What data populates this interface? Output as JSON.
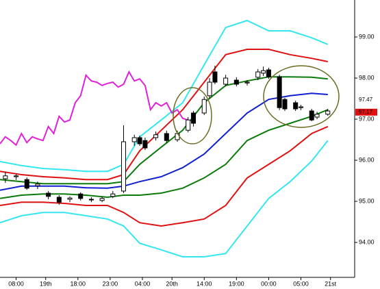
{
  "chart_data": {
    "type": "candlestick",
    "xlim": [
      0,
      66
    ],
    "ylim": [
      93.15,
      99.9
    ],
    "grid": false,
    "yticks": [
      {
        "value": 94,
        "label": "94.00"
      },
      {
        "value": 95,
        "label": "95.00"
      },
      {
        "value": 96,
        "label": "96.00"
      },
      {
        "value": 97,
        "label": "97.00"
      },
      {
        "value": 98,
        "label": "98.00"
      },
      {
        "value": 99,
        "label": "99.00"
      }
    ],
    "xticks": [
      {
        "value": 3,
        "label": "08:00"
      },
      {
        "value": 8.5,
        "label": "19th"
      },
      {
        "value": 14.5,
        "label": "18:00"
      },
      {
        "value": 20.5,
        "label": "23:00"
      },
      {
        "value": 26.5,
        "label": "04:00"
      },
      {
        "value": 32,
        "label": "20th"
      },
      {
        "value": 38,
        "label": "14:00"
      },
      {
        "value": 44,
        "label": "19:00"
      },
      {
        "value": 50,
        "label": "00:00"
      },
      {
        "value": 56,
        "label": "05:00"
      },
      {
        "value": 61.5,
        "label": "21st"
      }
    ],
    "up_color": "#ffffff",
    "down_color": "#000000",
    "candles": {
      "x": [
        1,
        3,
        5,
        7,
        9,
        11,
        13,
        15,
        17,
        19,
        21,
        23,
        25,
        26,
        27,
        29,
        31,
        33,
        35,
        36,
        38,
        39,
        40,
        42,
        44,
        46,
        48,
        49,
        50,
        52,
        53,
        55,
        56,
        58,
        59,
        61
      ],
      "open": [
        95.55,
        95.6,
        95.53,
        95.38,
        95.2,
        95.1,
        95.05,
        95.18,
        95.05,
        95.02,
        95.12,
        95.25,
        96.45,
        96.55,
        96.48,
        96.55,
        96.65,
        96.5,
        96.73,
        97.15,
        97.15,
        97.57,
        98.15,
        97.85,
        97.95,
        97.88,
        98.02,
        98.12,
        98.2,
        98.03,
        97.48,
        97.4,
        97.28,
        97.2,
        97.05,
        97.12
      ],
      "high": [
        95.72,
        95.68,
        95.58,
        95.48,
        95.25,
        95.15,
        95.12,
        95.22,
        95.1,
        95.12,
        95.25,
        96.85,
        96.62,
        96.6,
        96.55,
        96.7,
        96.72,
        96.72,
        97.05,
        97.2,
        97.55,
        98.0,
        98.3,
        98.08,
        98.02,
        97.95,
        98.22,
        98.28,
        98.25,
        98.08,
        97.52,
        97.45,
        97.35,
        97.25,
        97.18,
        97.25
      ],
      "low": [
        95.45,
        95.52,
        95.28,
        95.3,
        95.05,
        94.92,
        94.98,
        95.02,
        94.98,
        94.98,
        95.08,
        95.2,
        96.35,
        96.35,
        96.25,
        96.48,
        96.42,
        96.45,
        96.68,
        96.82,
        97.1,
        97.5,
        97.85,
        97.8,
        97.8,
        97.82,
        97.95,
        98.05,
        97.98,
        97.22,
        97.2,
        97.2,
        97.22,
        96.95,
        97.0,
        97.08
      ],
      "close": [
        95.62,
        95.62,
        95.32,
        95.42,
        95.12,
        94.98,
        95.08,
        95.07,
        95.05,
        95.07,
        95.18,
        96.45,
        96.55,
        96.4,
        96.3,
        96.62,
        96.48,
        96.65,
        96.98,
        96.9,
        97.48,
        97.9,
        97.9,
        98.0,
        97.85,
        97.9,
        98.15,
        98.18,
        98.03,
        97.28,
        97.25,
        97.25,
        97.3,
        96.98,
        97.12,
        97.2
      ]
    },
    "series": [
      {
        "color": "#33e6f0",
        "x": [
          0,
          4,
          8,
          12,
          16,
          20,
          23,
          26,
          30,
          34,
          38,
          42,
          46,
          50,
          54,
          58,
          61
        ],
        "values": [
          95.97,
          95.87,
          95.8,
          95.77,
          95.73,
          95.73,
          95.9,
          96.57,
          96.98,
          97.4,
          98.32,
          99.23,
          99.4,
          99.15,
          99.15,
          98.98,
          98.82
        ]
      },
      {
        "color": "#e01010",
        "x": [
          0,
          4,
          8,
          12,
          16,
          20,
          23,
          26,
          30,
          34,
          38,
          42,
          46,
          50,
          54,
          58,
          61
        ],
        "values": [
          95.73,
          95.65,
          95.6,
          95.57,
          95.53,
          95.53,
          95.65,
          96.23,
          96.73,
          97.23,
          97.9,
          98.57,
          98.7,
          98.7,
          98.57,
          98.48,
          98.4
        ]
      },
      {
        "color": "#0a7a0a",
        "x": [
          0,
          4,
          8,
          12,
          16,
          20,
          23,
          26,
          30,
          34,
          38,
          42,
          46,
          50,
          54,
          58,
          61
        ],
        "values": [
          95.53,
          95.48,
          95.43,
          95.43,
          95.43,
          95.43,
          95.48,
          95.9,
          96.32,
          96.73,
          97.4,
          97.82,
          97.93,
          98.03,
          98.03,
          98.02,
          97.98
        ]
      },
      {
        "color": "#1020d0",
        "x": [
          0,
          4,
          8,
          12,
          16,
          20,
          23,
          26,
          30,
          34,
          38,
          42,
          46,
          50,
          54,
          58,
          61
        ],
        "values": [
          95.27,
          95.37,
          95.37,
          95.37,
          95.33,
          95.32,
          95.37,
          95.48,
          95.6,
          95.82,
          96.15,
          96.65,
          97.15,
          97.48,
          97.57,
          97.63,
          97.6
        ]
      },
      {
        "color": "#0a7a0a",
        "x": [
          0,
          4,
          8,
          12,
          16,
          20,
          23,
          26,
          30,
          34,
          38,
          42,
          46,
          50,
          54,
          58,
          61
        ],
        "values": [
          95.07,
          95.15,
          95.18,
          95.18,
          95.15,
          95.1,
          95.15,
          95.15,
          95.2,
          95.32,
          95.57,
          95.9,
          96.48,
          96.73,
          96.9,
          97.07,
          97.23
        ]
      },
      {
        "color": "#e01010",
        "x": [
          0,
          4,
          8,
          12,
          16,
          20,
          23,
          26,
          30,
          34,
          38,
          42,
          46,
          50,
          54,
          58,
          61
        ],
        "values": [
          94.9,
          94.98,
          94.98,
          94.95,
          94.9,
          94.9,
          94.73,
          94.48,
          94.4,
          94.48,
          94.57,
          94.9,
          95.57,
          95.9,
          96.23,
          96.65,
          96.82
        ]
      },
      {
        "color": "#33e6f0",
        "x": [
          0,
          4,
          8,
          12,
          16,
          20,
          23,
          26,
          30,
          34,
          38,
          42,
          46,
          50,
          54,
          58,
          61
        ],
        "values": [
          94.48,
          94.65,
          94.73,
          94.73,
          94.65,
          94.57,
          94.4,
          93.98,
          93.82,
          93.65,
          93.65,
          93.73,
          94.4,
          95.07,
          95.48,
          95.98,
          96.48
        ]
      },
      {
        "color": "#e020d8",
        "x": [
          0,
          1,
          2,
          3,
          4,
          5,
          6,
          7,
          8,
          9,
          10,
          11,
          12,
          13,
          14,
          15,
          16,
          17,
          18,
          19,
          20,
          21,
          22,
          23,
          24,
          25,
          26,
          27,
          28,
          29,
          30,
          31,
          32,
          33,
          34,
          35
        ],
        "values": [
          96.4,
          96.57,
          96.48,
          96.37,
          96.65,
          96.43,
          96.57,
          96.52,
          96.48,
          96.82,
          96.65,
          97.07,
          96.93,
          96.98,
          97.4,
          97.57,
          98.07,
          97.93,
          97.9,
          97.82,
          97.87,
          97.9,
          97.78,
          97.85,
          98.15,
          97.93,
          97.98,
          97.82,
          97.23,
          97.4,
          97.32,
          97.4,
          97.15,
          97.23,
          97.02,
          96.98
        ]
      }
    ],
    "price_tags": [
      {
        "value": 97.47,
        "label": "97.47"
      },
      {
        "value": 97.17,
        "label": "97.17"
      }
    ]
  }
}
